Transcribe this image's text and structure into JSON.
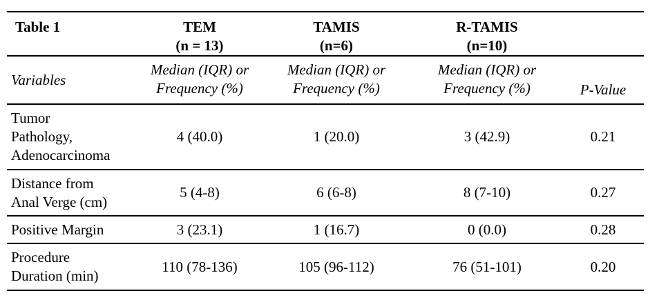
{
  "table": {
    "title": "Table 1",
    "groups": [
      {
        "name": "TEM",
        "n": "(n = 13)"
      },
      {
        "name": "TAMIS",
        "n": "(n=6)"
      },
      {
        "name": "R-TAMIS",
        "n": "(n=10)"
      }
    ],
    "subheader": {
      "variables": "Variables",
      "stat": "Median (IQR) or\nFrequency (%)",
      "pvalue": "P-Value"
    },
    "rows": [
      {
        "variable": "Tumor\nPathology,\nAdenocarcinoma",
        "tem": "4 (40.0)",
        "tamis": "1 (20.0)",
        "rtamis": "3 (42.9)",
        "p": "0.21"
      },
      {
        "variable": "Distance from\nAnal Verge (cm)",
        "tem": "5 (4-8)",
        "tamis": "6 (6-8)",
        "rtamis": "8 (7-10)",
        "p": "0.27"
      },
      {
        "variable": "Positive Margin",
        "tem": "3 (23.1)",
        "tamis": "1 (16.7)",
        "rtamis": "0 (0.0)",
        "p": "0.28"
      },
      {
        "variable": "Procedure\nDuration (min)",
        "tem": "110 (78-136)",
        "tamis": "105 (96-112)",
        "rtamis": "76 (51-101)",
        "p": "0.20"
      }
    ]
  }
}
